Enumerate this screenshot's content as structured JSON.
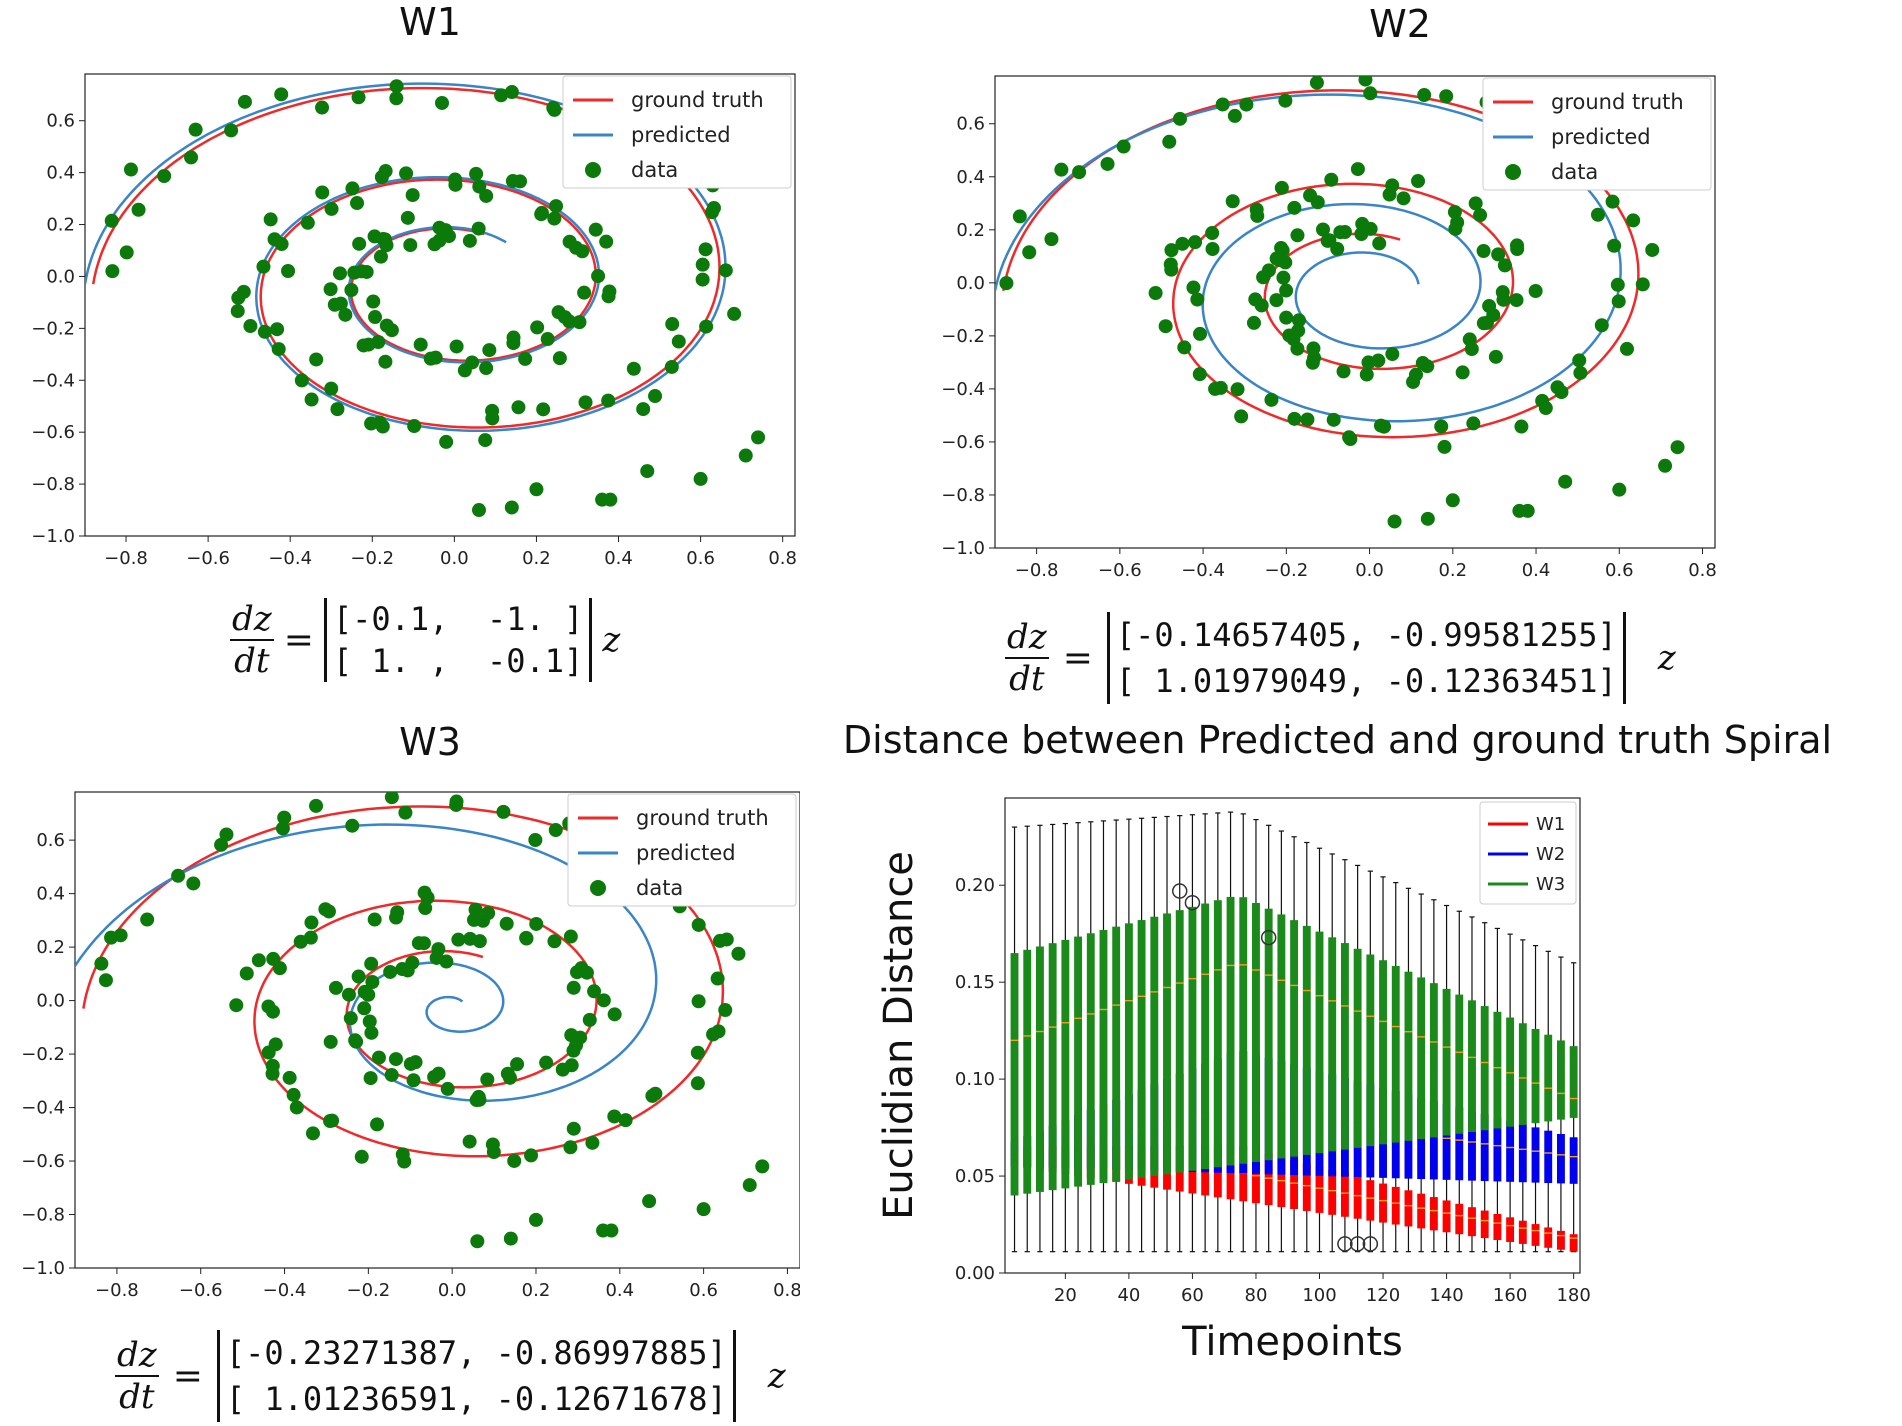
{
  "colors": {
    "ground_truth": "#ee2a2a",
    "predicted": "#3a84c8",
    "data": "#0b7a0b",
    "w1": "#ff0000",
    "w2": "#0000ee",
    "w3": "#1a8a1a"
  },
  "equation": {
    "lhs_num": "dz",
    "lhs_den": "dt",
    "equals": "=",
    "var": "z"
  },
  "chart_data": [
    {
      "id": "W1",
      "type": "scatter",
      "title": "W1",
      "xlim": [
        -0.9,
        0.83
      ],
      "ylim": [
        -1.0,
        0.78
      ],
      "xticks": [
        "−0.8",
        "−0.6",
        "−0.4",
        "−0.2",
        "0.0",
        "0.2",
        "0.4",
        "0.6",
        "0.8"
      ],
      "xtick_values": [
        -0.8,
        -0.6,
        -0.4,
        -0.2,
        0.0,
        0.2,
        0.4,
        0.6,
        0.8
      ],
      "yticks": [
        "−1.0",
        "−0.8",
        "−0.6",
        "−0.4",
        "−0.2",
        "0.0",
        "0.2",
        "0.4",
        "0.6"
      ],
      "ytick_values": [
        -1.0,
        -0.8,
        -0.6,
        -0.4,
        -0.2,
        0.0,
        0.2,
        0.4,
        0.6
      ],
      "legend": [
        "ground truth",
        "predicted",
        "data"
      ],
      "matrix": [
        [
          -0.1,
          -1.0
        ],
        [
          1.0,
          -0.1
        ]
      ],
      "matrix_rows": [
        "[-0.1,  -1. ]",
        "[ 1. ,  -0.1]"
      ]
    },
    {
      "id": "W2",
      "type": "scatter",
      "title": "W2",
      "xlim": [
        -0.9,
        0.83
      ],
      "ylim": [
        -1.0,
        0.78
      ],
      "xticks": [
        "−0.8",
        "−0.6",
        "−0.4",
        "−0.2",
        "0.0",
        "0.2",
        "0.4",
        "0.6",
        "0.8"
      ],
      "xtick_values": [
        -0.8,
        -0.6,
        -0.4,
        -0.2,
        0.0,
        0.2,
        0.4,
        0.6,
        0.8
      ],
      "yticks": [
        "−1.0",
        "−0.8",
        "−0.6",
        "−0.4",
        "−0.2",
        "0.0",
        "0.2",
        "0.4",
        "0.6"
      ],
      "ytick_values": [
        -1.0,
        -0.8,
        -0.6,
        -0.4,
        -0.2,
        0.0,
        0.2,
        0.4,
        0.6
      ],
      "legend": [
        "ground truth",
        "predicted",
        "data"
      ],
      "matrix": [
        [
          -0.14657405,
          -0.99581255
        ],
        [
          1.01979049,
          -0.12363451
        ]
      ],
      "matrix_rows": [
        "[-0.14657405, -0.99581255]",
        "[ 1.01979049, -0.12363451]"
      ]
    },
    {
      "id": "W3",
      "type": "scatter",
      "title": "W3",
      "xlim": [
        -0.9,
        0.83
      ],
      "ylim": [
        -1.0,
        0.78
      ],
      "xticks": [
        "−0.8",
        "−0.6",
        "−0.4",
        "−0.2",
        "0.0",
        "0.2",
        "0.4",
        "0.6",
        "0.8"
      ],
      "xtick_values": [
        -0.8,
        -0.6,
        -0.4,
        -0.2,
        0.0,
        0.2,
        0.4,
        0.6,
        0.8
      ],
      "yticks": [
        "−1.0",
        "−0.8",
        "−0.6",
        "−0.4",
        "−0.2",
        "0.0",
        "0.2",
        "0.4",
        "0.6"
      ],
      "ytick_values": [
        -1.0,
        -0.8,
        -0.6,
        -0.4,
        -0.2,
        0.0,
        0.2,
        0.4,
        0.6
      ],
      "legend": [
        "ground truth",
        "predicted",
        "data"
      ],
      "matrix": [
        [
          -0.23271387,
          -0.86997885
        ],
        [
          1.01236591,
          -0.12671678
        ]
      ],
      "matrix_rows": [
        "[-0.23271387, -0.86997885]",
        "[ 1.01236591, -0.12671678]"
      ]
    },
    {
      "id": "distance",
      "type": "box",
      "title": "Distance between Predicted and ground truth Spiral",
      "xlabel": "Timepoints",
      "ylabel": "Euclidian Distance",
      "xlim": [
        1,
        182
      ],
      "ylim": [
        0,
        0.245
      ],
      "xticks": [
        "20",
        "40",
        "60",
        "80",
        "100",
        "120",
        "140",
        "160",
        "180"
      ],
      "xtick_values": [
        20,
        40,
        60,
        80,
        100,
        120,
        140,
        160,
        180
      ],
      "yticks": [
        "0.00",
        "0.05",
        "0.10",
        "0.15",
        "0.20"
      ],
      "ytick_values": [
        0.0,
        0.05,
        0.1,
        0.15,
        0.2
      ],
      "legend": [
        "W1",
        "W2",
        "W3"
      ],
      "box_step": 4,
      "series": [
        {
          "name": "W1",
          "median_start": 0.062,
          "median_peak": 0.052,
          "median_end": 0.018,
          "q1_start": 0.055,
          "q3_start": 0.065,
          "q3_peak": 0.066,
          "q1_end": 0.011,
          "q3_end": 0.02
        },
        {
          "name": "W2",
          "median_start": 0.06,
          "median_peak": 0.085,
          "median_end": 0.06,
          "q1_start": 0.055,
          "q3_start": 0.068,
          "q3_peak": 0.115,
          "q1_end": 0.046,
          "q3_end": 0.07
        },
        {
          "name": "W3",
          "median_start": 0.12,
          "median_peak": 0.16,
          "median_end": 0.09,
          "q1_start": 0.04,
          "q3_start": 0.165,
          "q3_peak": 0.195,
          "q1_end": 0.08,
          "q3_end": 0.117
        }
      ],
      "whisker_low": 0.011,
      "whisker_high_start": 0.23,
      "whisker_high_peak": 0.238,
      "whisker_high_end": 0.16,
      "outliers": [
        [
          56,
          0.197
        ],
        [
          60,
          0.191
        ],
        [
          84,
          0.173
        ],
        [
          108,
          0.015
        ],
        [
          112,
          0.015
        ],
        [
          116,
          0.015
        ]
      ]
    }
  ]
}
